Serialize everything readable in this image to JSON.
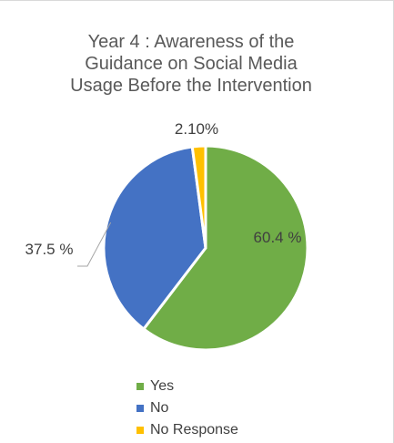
{
  "chart_data": {
    "type": "pie",
    "title_lines": [
      "Year 4 : Awareness of the",
      "Guidance on Social Media",
      "Usage Before the Intervention"
    ],
    "categories": [
      "Yes",
      "No",
      "No Response"
    ],
    "values": [
      60.4,
      37.5,
      2.1
    ],
    "data_labels": [
      "60.4 %",
      "37.5 %",
      "2.10%"
    ],
    "colors": [
      "#70ad47",
      "#4472c4",
      "#ffc000"
    ],
    "start_angle_deg": 0,
    "direction": "clockwise",
    "legend_position": "bottom"
  }
}
